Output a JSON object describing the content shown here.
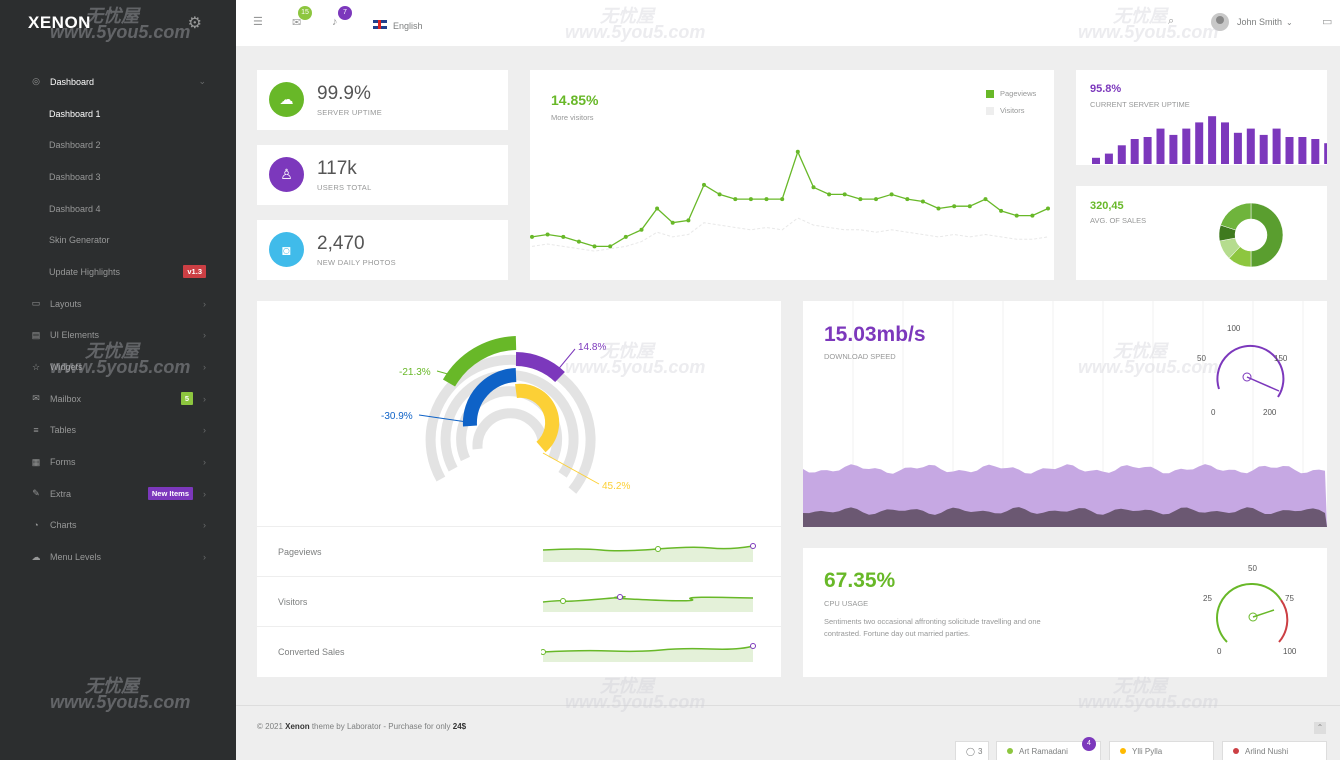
{
  "app": {
    "logo": "XENON"
  },
  "sidebar": {
    "items": [
      {
        "label": "Dashboard",
        "icon": "dashboard-icon",
        "active": true
      },
      {
        "label": "Dashboard 1"
      },
      {
        "label": "Dashboard 2"
      },
      {
        "label": "Dashboard 3"
      },
      {
        "label": "Dashboard 4"
      },
      {
        "label": "Skin Generator"
      },
      {
        "label": "Update Highlights",
        "badge": "v1.3"
      },
      {
        "label": "Layouts",
        "icon": "monitor-icon"
      },
      {
        "label": "UI Elements",
        "icon": "ui-elements-icon"
      },
      {
        "label": "Widgets",
        "icon": "star-icon"
      },
      {
        "label": "Mailbox",
        "icon": "mailbox-icon",
        "badge": "5"
      },
      {
        "label": "Tables",
        "icon": "database-icon"
      },
      {
        "label": "Forms",
        "icon": "forms-icon"
      },
      {
        "label": "Extra",
        "icon": "extra-icon",
        "badge": "New Items"
      },
      {
        "label": "Charts",
        "icon": "charts-icon"
      },
      {
        "label": "Menu Levels",
        "icon": "cloud-icon"
      }
    ]
  },
  "topbar": {
    "messages_count": "15",
    "notifications_count": "7",
    "language": "English",
    "user_name": "John Smith"
  },
  "stats": [
    {
      "value": "99.9%",
      "label": "SERVER UPTIME",
      "color": "#68b828",
      "icon": "cloud-icon"
    },
    {
      "value": "117k",
      "label": "USERS TOTAL",
      "color": "#7c38bc",
      "icon": "user-icon"
    },
    {
      "value": "2,470",
      "label": "NEW DAILY PHOTOS",
      "color": "#40bbea",
      "icon": "camera-icon"
    }
  ],
  "visitors_chart": {
    "value": "14.85%",
    "label": "More visitors",
    "legend": [
      "Pageviews",
      "Visitors"
    ]
  },
  "uptime_card": {
    "value": "95.8%",
    "label": "CURRENT SERVER UPTIME"
  },
  "sales_card": {
    "value": "320,45",
    "label": "AVG. OF SALES"
  },
  "radial": {
    "labels": [
      "-21.3%",
      "14.8%",
      "-30.9%",
      "45.2%"
    ]
  },
  "rows": [
    {
      "label": "Pageviews"
    },
    {
      "label": "Visitors"
    },
    {
      "label": "Converted Sales"
    }
  ],
  "download": {
    "value": "15.03mb/s",
    "label": "DOWNLOAD SPEED",
    "gauge_ticks": [
      "0",
      "50",
      "100",
      "150",
      "200"
    ]
  },
  "cpu": {
    "value": "67.35%",
    "label": "CPU USAGE",
    "description": "Sentiments two occasional affronting solicitude travelling and one contrasted. Fortune day out married parties.",
    "gauge_ticks": [
      "0",
      "25",
      "50",
      "75",
      "100"
    ]
  },
  "footer": {
    "prefix": "© 2021 ",
    "brand": "Xenon",
    "middle": " theme by Laborator - Purchase for only ",
    "price": "24$"
  },
  "chat": {
    "count": "3",
    "unread": "4",
    "users": [
      {
        "name": "Art Ramadani",
        "status_color": "#8dc63f"
      },
      {
        "name": "Ylli Pylla",
        "status_color": "#ffba00"
      },
      {
        "name": "Arlind Nushi",
        "status_color": "#cc3f44"
      }
    ]
  },
  "watermarks": [
    "无忧屋",
    "www.5you5.com"
  ],
  "colors": {
    "purple": "#7c38bc",
    "green": "#68b828",
    "blue": "#0e62c7",
    "yellow": "#fcd036"
  },
  "chart_data": [
    {
      "type": "line",
      "title": "",
      "series": [
        {
          "name": "Pageviews",
          "values": [
            1.4,
            1.5,
            1.4,
            1.2,
            1.0,
            1.0,
            1.4,
            1.7,
            2.6,
            2.0,
            2.1,
            3.6,
            3.2,
            3.0,
            3.0,
            3.0,
            3.0,
            5.0,
            3.5,
            3.2,
            3.2,
            3.0,
            3.0,
            3.2,
            3.0,
            2.9,
            2.6,
            2.7,
            2.7,
            3.0,
            2.5,
            2.3,
            2.3,
            2.6
          ]
        },
        {
          "name": "Visitors",
          "values": [
            1.0,
            1.1,
            1.0,
            0.9,
            0.8,
            0.9,
            1.0,
            1.2,
            1.6,
            1.4,
            1.5,
            2.0,
            1.9,
            1.8,
            1.7,
            1.8,
            1.7,
            2.2,
            1.9,
            1.8,
            1.7,
            1.7,
            1.6,
            1.7,
            1.6,
            1.5,
            1.4,
            1.5,
            1.4,
            1.5,
            1.4,
            1.3,
            1.3,
            1.4
          ]
        }
      ]
    },
    {
      "type": "bar",
      "title": "CURRENT SERVER UPTIME",
      "values": [
        3,
        5,
        9,
        12,
        13,
        17,
        14,
        17,
        20,
        23,
        20,
        15,
        17,
        14,
        17,
        13,
        13,
        12,
        10,
        13
      ]
    },
    {
      "type": "pie",
      "title": "AVG. OF SALES",
      "values": [
        50,
        12,
        10,
        8,
        20
      ]
    }
  ]
}
